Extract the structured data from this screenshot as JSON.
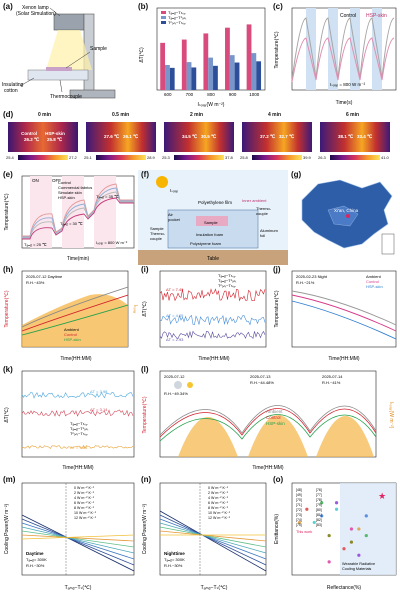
{
  "labels": [
    "(a)",
    "(b)",
    "(c)",
    "(d)",
    "(e)",
    "(f)",
    "(g)",
    "(h)",
    "(i)",
    "(j)",
    "(k)",
    "(l)",
    "(m)",
    "(n)",
    "(o)"
  ],
  "a": {
    "lamp": "Xenon lamp",
    "lamp2": "(Solar Simulation)",
    "sample": "Sample",
    "cotton": "Insulating",
    "cotton2": "cotton",
    "tc": "Thermocouple"
  },
  "b": {
    "ylabel": "ΔT(℃)",
    "xlabel": "Iₛₒₗₐᵣ(W m⁻²)",
    "legend": [
      "Tₐₘᵦ−Tₕₛₚ",
      "Tₐₘᵦ−Tᶜₒₙₜ",
      "Tᶜₒₙₜ−Tₕₛₚ"
    ]
  },
  "c": {
    "ylabel": "Temperature(℃)",
    "xlabel": "Time(s)",
    "control": "Control",
    "hsp": "HSP-skin",
    "note": "Iₛₒₗₐᵣ = 800 W m⁻²"
  },
  "d": {
    "times": [
      "0 min",
      "0.5 min",
      "2 min",
      "4 min",
      "6 min"
    ],
    "frames": [
      [
        "Control",
        "26.2 ℃",
        "HSP-skin",
        "25.8 ℃"
      ],
      [
        "27.6 ℃",
        "26.1 ℃"
      ],
      [
        "34.5 ℃",
        "30.5 ℃"
      ],
      [
        "37.2 ℃",
        "32.7 ℃"
      ],
      [
        "38.1 ℃",
        "33.4 ℃"
      ]
    ],
    "cbars": [
      [
        "25.4",
        "27.2"
      ],
      [
        "25.1",
        "28.9"
      ],
      [
        "25.3",
        "37.8"
      ],
      [
        "25.8",
        "39.9"
      ],
      [
        "26.3",
        "41.0"
      ]
    ]
  },
  "e": {
    "ylabel": "Temperature(℃)",
    "xlabel": "Time(min)",
    "on": "ON",
    "off": "OFF",
    "legend": [
      "Control",
      "Commercial fabrics",
      "Simulate skin",
      "HSP-skin"
    ],
    "t1": "Tₐₘᵦ = 25 ℃",
    "t2": "Tₐₘᵦ = 30 ℃",
    "t3": "Tₐₘᵦ = 35 ℃",
    "note": "Iₛₒₗₐᵣ = 800 W m⁻²"
  },
  "f": {
    "isolar": "Iₛₒₗₐᵣ",
    "pe": "Polyethylene film",
    "air": "Air",
    "pocket": "pocket",
    "inner": "Inner ambient",
    "thermo": "Thermo-",
    "couple": "couple",
    "sample": "Sample",
    "tc2": "Thermo-",
    "tc3": "couple",
    "insul": "Insulation foam",
    "foam": "Polystyrene foam",
    "al": "Aluminum",
    "foil": "foil",
    "table": "Table",
    "sample2": "Sample"
  },
  "g": {
    "city": "Xi'an, China"
  },
  "h": {
    "date": "2025-07-12 Daytime",
    "rh": "R.H.~43%",
    "ylabel": "Temperature(℃)",
    "xlabel": "Time(HH:MM)",
    "legend": [
      "Ambient",
      "Control",
      "HSP-skin"
    ],
    "y2": "Iₛₒₗₐᵣ"
  },
  "i": {
    "ylabel": "ΔT(℃)",
    "xlabel": "Time(HH:MM)",
    "legend": [
      "Tₐₘᵦ−Tₕₛₚ",
      "Tₐₘᵦ−Tᶜₒₙₜ",
      "Tᶜₒₙₜ−Tₕₛₚ"
    ],
    "a1": "ΔT = 7.49",
    "a2": "ΔT = 4.05",
    "a3": "ΔT = 2.93"
  },
  "j": {
    "date": "2025-02-23 Night",
    "rh": "R.H.~21%",
    "ylabel": "Temperature(℃)",
    "xlabel": "Time(HH:MM)",
    "legend": [
      "Ambient",
      "Control",
      "HSP-skin"
    ]
  },
  "k": {
    "ylabel": "ΔT(℃)",
    "xlabel": "Time(HH:MM)",
    "a1": "ΔT = 3.98",
    "a2": "ΔT = 3.14",
    "a3": "ΔT = 0.84",
    "legend": [
      "Tₐₘᵦ−Tₕₛₚ",
      "Tₐₘᵦ−Tᶜₒₙₜ",
      "Tᶜₒₙₜ−Tₕₛₚ"
    ]
  },
  "l": {
    "ylabel": "Temperature(℃)",
    "xlabel": "Time(HH:MM)",
    "y2": "Iₛₒₗₐᵣ(W m⁻²)",
    "d1": "2025-07-12",
    "r1": "R.H.~49.34%",
    "d2": "2025-07-13",
    "r2": "R.H.~44.48%",
    "d3": "2025-07-14",
    "r3": "R.H.~41%",
    "legend": [
      "Ambient",
      "Control",
      "HSP-skin"
    ]
  },
  "m": {
    "ylabel": "Cooling Power(W m⁻²)",
    "xlabel": "Tₐₘᵦ−Tₛ(℃)",
    "legend": [
      "0 W m⁻² K⁻¹",
      "2 W m⁻² K⁻¹",
      "4 W m⁻² K⁻¹",
      "6 W m⁻² K⁻¹",
      "8 W m⁻² K⁻¹",
      "10 W m⁻² K⁻¹",
      "12 W m⁻² K⁻¹"
    ],
    "label": "Daytime",
    "t": "Tₐₘᵦ= 300K",
    "rh": "R.H.~30%"
  },
  "n": {
    "ylabel": "Cooling Power(W m⁻²)",
    "xlabel": "Tₐₘᵦ−Tₛ(℃)",
    "label": "Nighttime",
    "t": "Tₐₘᵦ= 300K",
    "rh": "R.H.~30%"
  },
  "o": {
    "ylabel": "Emittance(%)",
    "xlabel": "Reflectance(%)",
    "refs": [
      "[48]",
      "[49]",
      "[70]",
      "[71]",
      "[72]",
      "[73]",
      "[74]",
      "[75]",
      "[76]",
      "[77]",
      "[78]",
      "[79]",
      "[80]",
      "[81]",
      "[82]",
      "[83]"
    ],
    "this": "This work",
    "zone": "Wearable Radiative",
    "zone2": "Cooling Materials"
  },
  "chart_data": [
    {
      "type": "bar",
      "panel": "b",
      "categories": [
        "600",
        "700",
        "800",
        "900",
        "1000"
      ],
      "series": [
        {
          "name": "T_amb - T_hsp",
          "values": [
            11.5,
            12.3,
            13.8,
            15.2,
            16.0
          ]
        },
        {
          "name": "T_amb - T_cont",
          "values": [
            6.1,
            6.8,
            7.9,
            8.5,
            9.0
          ]
        },
        {
          "name": "T_cont - T_hsp",
          "values": [
            5.4,
            5.5,
            5.9,
            6.7,
            7.0
          ]
        }
      ],
      "ylim": [
        0,
        20
      ]
    },
    {
      "type": "bar",
      "panel": "o",
      "categories": [
        "48",
        "49",
        "70",
        "71",
        "72",
        "73",
        "74",
        "75",
        "76",
        "77",
        "78",
        "79",
        "80",
        "81",
        "82",
        "83",
        "This work"
      ],
      "x": [
        84,
        86,
        92,
        91,
        88,
        85,
        87,
        90,
        89,
        92,
        86,
        83,
        91,
        88,
        90,
        87,
        94
      ],
      "values": [
        92,
        91,
        88,
        89,
        93,
        90,
        84,
        87,
        86,
        91,
        93,
        90,
        85,
        92,
        89,
        88,
        94
      ],
      "ylim": [
        82,
        96
      ]
    }
  ]
}
